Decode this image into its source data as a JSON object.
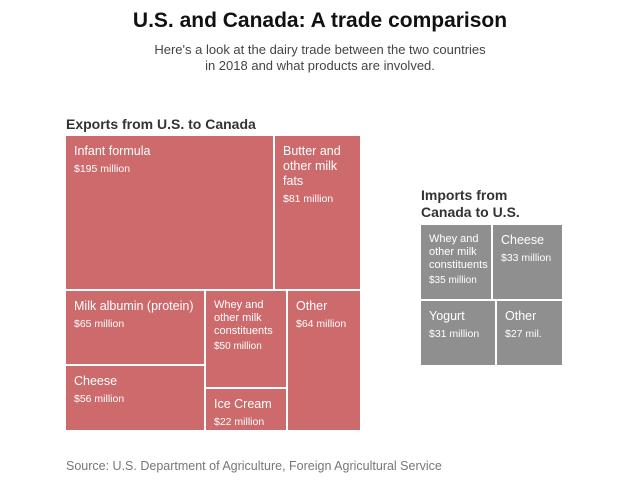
{
  "title": "U.S. and Canada: A trade comparison",
  "subtitle": "Here's a look at the dairy trade between the two countries in 2018 and what products are involved.",
  "source": "Source: U.S. Department of Agriculture, Foreign Agricultural Service",
  "colors": {
    "exports": "#cd6a6c",
    "imports": "#8f8f8f"
  },
  "chart_data": [
    {
      "type": "treemap",
      "title": "Exports from U.S. to Canada",
      "unit": "million",
      "items": [
        {
          "name": "Infant formula",
          "value": 195,
          "label": "$195 million"
        },
        {
          "name": "Butter and other milk fats",
          "value": 81,
          "label": "$81 million"
        },
        {
          "name": "Milk albumin (protein)",
          "value": 65,
          "label": "$65 million"
        },
        {
          "name": "Whey and other milk constituents",
          "value": 50,
          "label": "$50 million"
        },
        {
          "name": "Other",
          "value": 64,
          "label": "$64 million"
        },
        {
          "name": "Cheese",
          "value": 56,
          "label": "$56 million"
        },
        {
          "name": "Ice Cream",
          "value": 22,
          "label": "$22 million"
        }
      ]
    },
    {
      "type": "treemap",
      "title": "Imports from Canada to U.S.",
      "unit": "million",
      "items": [
        {
          "name": "Whey and other milk constituents",
          "value": 35,
          "label": "$35 million"
        },
        {
          "name": "Cheese",
          "value": 33,
          "label": "$33 million"
        },
        {
          "name": "Yogurt",
          "value": 31,
          "label": "$31 million"
        },
        {
          "name": "Other",
          "value": 27,
          "label": "$27 mil."
        }
      ]
    }
  ]
}
